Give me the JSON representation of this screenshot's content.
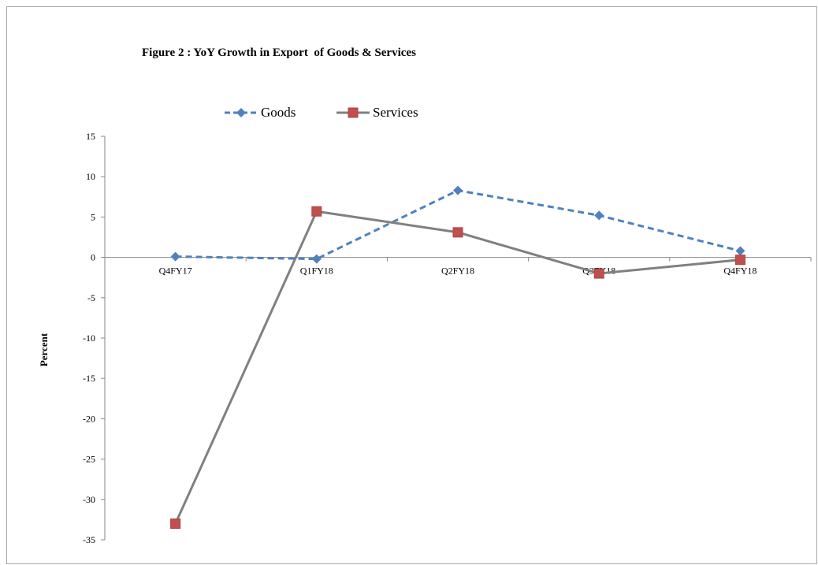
{
  "chart_data": {
    "type": "line",
    "title": "Figure 2 : YoY Growth in Export  of Goods & Services",
    "xlabel": "",
    "ylabel": "Percent",
    "categories": [
      "Q4FY17",
      "Q1FY18",
      "Q2FY18",
      "Q3FY18",
      "Q4FY18"
    ],
    "ylim": [
      -35,
      15
    ],
    "yticks": [
      "15",
      "10",
      "5",
      "0",
      "-5",
      "-10",
      "-15",
      "-20",
      "-25",
      "-30",
      "-35"
    ],
    "grid": false,
    "legend_position": "top",
    "series": [
      {
        "name": "Goods",
        "values": [
          0.1,
          -0.2,
          8.3,
          5.2,
          0.8
        ],
        "color": "#4f81bd",
        "marker": "diamond",
        "line_style": "dashed"
      },
      {
        "name": "Services",
        "values": [
          -33.0,
          5.7,
          3.1,
          -2.0,
          -0.3
        ],
        "color": "#808080",
        "marker_color": "#c0504d",
        "marker": "square",
        "line_style": "solid"
      }
    ]
  }
}
